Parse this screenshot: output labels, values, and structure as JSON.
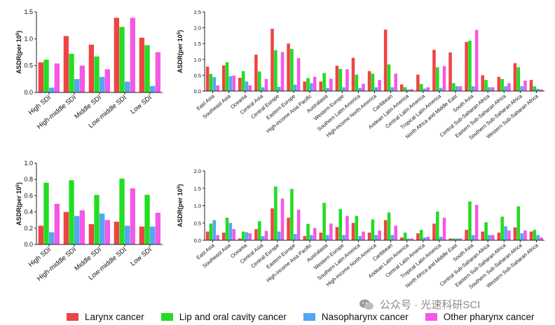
{
  "colors": {
    "larynx": "#EE4444",
    "lip": "#22DD22",
    "naso": "#55A5F5",
    "other": "#F558E5"
  },
  "legend": [
    {
      "key": "larynx",
      "label": "Larynx cancer"
    },
    {
      "key": "lip",
      "label": "Lip and oral cavity cancer"
    },
    {
      "key": "naso",
      "label": "Nasopharynx cancer"
    },
    {
      "key": "other",
      "label": "Other pharynx cancer"
    }
  ],
  "watermark": {
    "text": "公众号 · 光速科研SCI"
  },
  "chart_data": [
    {
      "id": "sdi-top",
      "type": "bar",
      "ylabel_main": "ASDR(per 10",
      "ylabel_sup": "5",
      "ylabel_tail": ")",
      "ylim": [
        0,
        1.5
      ],
      "yticks": [
        "0.0",
        "0.5",
        "1.0",
        "1.5"
      ],
      "categories": [
        "High SDI",
        "High-middle SDI",
        "Middle SDI",
        "Low-middle SDI",
        "Low SDI"
      ],
      "series": [
        {
          "key": "larynx",
          "name": "Larynx cancer",
          "values": [
            0.56,
            1.05,
            0.89,
            1.39,
            1.02
          ]
        },
        {
          "key": "lip",
          "name": "Lip and oral cavity cancer",
          "values": [
            0.61,
            0.72,
            0.67,
            1.22,
            0.88
          ]
        },
        {
          "key": "naso",
          "name": "Nasopharynx cancer",
          "values": [
            0.09,
            0.25,
            0.29,
            0.2,
            0.12
          ]
        },
        {
          "key": "other",
          "name": "Other pharynx cancer",
          "values": [
            0.54,
            0.5,
            0.43,
            1.39,
            0.75
          ]
        }
      ]
    },
    {
      "id": "region-top",
      "type": "bar",
      "ylabel_main": "ASDR(per 10",
      "ylabel_sup": "5",
      "ylabel_tail": ")",
      "ylim": [
        0,
        2.5
      ],
      "yticks": [
        "0.0",
        "0.5",
        "1.0",
        "1.5",
        "2.0",
        "2.5"
      ],
      "categories": [
        "East Asia",
        "Southeast Asia",
        "Oceania",
        "Central Asia",
        "Central Europe",
        "Eastern Europe",
        "High-income Asia Pacific",
        "Australasia",
        "Western Europe",
        "Southern Latin America",
        "High-income North America",
        "Caribbean",
        "Andean Latin America",
        "Central Latin America",
        "Tropical Latin America",
        "North Africa and Middle East",
        "South Asia",
        "Central Sub-Saharan Africa",
        "Eastern Sub-Saharan Africa",
        "Southern Sub-Saharan Africa",
        "Western Sub-Saharan Africa"
      ],
      "series": [
        {
          "key": "larynx",
          "name": "Larynx cancer",
          "values": [
            0.77,
            0.81,
            0.42,
            1.15,
            1.97,
            1.5,
            0.3,
            0.3,
            0.8,
            1.05,
            0.63,
            1.94,
            0.21,
            0.52,
            1.3,
            1.22,
            1.55,
            0.5,
            0.45,
            0.88,
            0.35
          ]
        },
        {
          "key": "lip",
          "name": "Lip and oral cavity cancer",
          "values": [
            0.54,
            0.91,
            0.63,
            0.62,
            1.29,
            1.33,
            0.41,
            0.57,
            0.7,
            0.52,
            0.55,
            0.84,
            0.12,
            0.22,
            0.75,
            0.25,
            1.59,
            0.35,
            0.38,
            0.75,
            0.15
          ]
        },
        {
          "key": "naso",
          "name": "Nasopharynx cancer",
          "values": [
            0.44,
            0.47,
            0.3,
            0.12,
            0.13,
            0.2,
            0.25,
            0.1,
            0.12,
            0.1,
            0.12,
            0.12,
            0.05,
            0.08,
            0.1,
            0.15,
            0.15,
            0.12,
            0.15,
            0.15,
            0.07
          ]
        },
        {
          "key": "other",
          "name": "Other pharynx cancer",
          "values": [
            0.18,
            0.49,
            0.18,
            0.38,
            1.23,
            1.04,
            0.45,
            0.39,
            0.69,
            0.23,
            0.35,
            0.55,
            0.06,
            0.12,
            0.79,
            0.15,
            1.93,
            0.12,
            0.25,
            0.33,
            0.05
          ]
        }
      ]
    },
    {
      "id": "sdi-bottom",
      "type": "bar",
      "ylabel_main": "ASDR(per 10",
      "ylabel_sup": "5",
      "ylabel_tail": ")",
      "ylim": [
        0,
        1.0
      ],
      "yticks": [
        "0.0",
        "0.2",
        "0.4",
        "0.6",
        "0.8",
        "1.0"
      ],
      "categories": [
        "High SDI",
        "High-middle SDI",
        "Middle SDI",
        "Low-middle SDI",
        "Low SDI"
      ],
      "series": [
        {
          "key": "larynx",
          "name": "Larynx cancer",
          "values": [
            0.23,
            0.4,
            0.25,
            0.28,
            0.22
          ]
        },
        {
          "key": "lip",
          "name": "Lip and oral cavity cancer",
          "values": [
            0.76,
            0.79,
            0.61,
            0.81,
            0.61
          ]
        },
        {
          "key": "naso",
          "name": "Nasopharynx cancer",
          "values": [
            0.15,
            0.35,
            0.38,
            0.23,
            0.22
          ]
        },
        {
          "key": "other",
          "name": "Other pharynx cancer",
          "values": [
            0.5,
            0.42,
            0.3,
            0.69,
            0.39
          ]
        }
      ]
    },
    {
      "id": "region-bottom",
      "type": "bar",
      "ylabel_main": "ASDR(per 10",
      "ylabel_sup": "5",
      "ylabel_tail": ")",
      "ylim": [
        0,
        2.0
      ],
      "yticks": [
        "0.0",
        "0.5",
        "1.0",
        "1.5",
        "2.0"
      ],
      "categories": [
        "East Asia",
        "Southeast Asia",
        "Oceania",
        "Central Asia",
        "Central Europe",
        "Eastern Europe",
        "High-income Asia Pacific",
        "Australasia",
        "Western Europe",
        "Southern Latin America",
        "High-income North America",
        "Caribbean",
        "Andean Latin America",
        "Central Latin America",
        "Tropical Latin America",
        "North Africa and Middle East",
        "South Asia",
        "Central Sub-Saharan Africa",
        "Eastern Sub-Saharan Africa",
        "Southern Sub-Saharan Africa",
        "Western Sub-Saharan Africa"
      ],
      "series": [
        {
          "key": "larynx",
          "name": "Larynx cancer",
          "values": [
            0.25,
            0.22,
            0.05,
            0.32,
            0.92,
            0.65,
            0.12,
            0.22,
            0.38,
            0.5,
            0.22,
            0.58,
            0.08,
            0.2,
            0.48,
            0.05,
            0.3,
            0.25,
            0.22,
            0.37,
            0.25
          ]
        },
        {
          "key": "lip",
          "name": "Lip and oral cavity cancer",
          "values": [
            0.48,
            0.65,
            0.25,
            0.55,
            1.55,
            1.48,
            0.47,
            1.08,
            0.9,
            0.7,
            0.6,
            0.8,
            0.22,
            0.3,
            0.83,
            0.05,
            1.12,
            0.52,
            0.68,
            0.98,
            0.3
          ]
        },
        {
          "key": "naso",
          "name": "Nasopharynx cancer",
          "values": [
            0.58,
            0.5,
            0.23,
            0.12,
            0.25,
            0.18,
            0.15,
            0.15,
            0.15,
            0.12,
            0.15,
            0.15,
            0.05,
            0.08,
            0.1,
            0.05,
            0.15,
            0.15,
            0.4,
            0.2,
            0.15
          ]
        },
        {
          "key": "other",
          "name": "Other pharynx cancer",
          "values": [
            0.15,
            0.32,
            0.2,
            0.27,
            1.2,
            0.88,
            0.35,
            0.48,
            0.7,
            0.25,
            0.28,
            0.42,
            0.05,
            0.1,
            0.65,
            0.05,
            1.02,
            0.15,
            0.28,
            0.28,
            0.08
          ]
        }
      ]
    }
  ]
}
